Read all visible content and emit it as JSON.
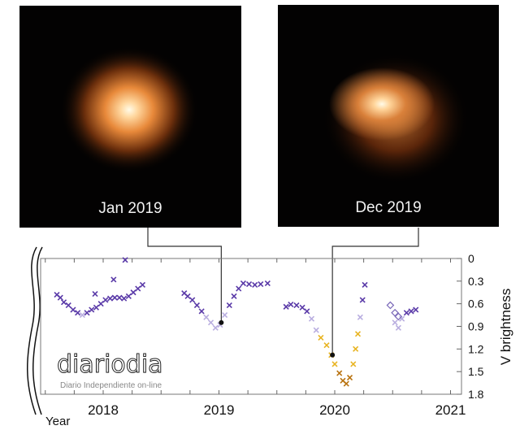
{
  "images": [
    {
      "caption": "Jan 2019"
    },
    {
      "caption": "Dec 2019"
    }
  ],
  "chart_data": {
    "type": "scatter",
    "xlabel": "Year",
    "ylabel": "V brightness",
    "xlim": [
      2017.45,
      2021.1
    ],
    "ylim": [
      0,
      1.8
    ],
    "y_inverted": true,
    "x_ticks": [
      "2018",
      "2019",
      "2020",
      "2021"
    ],
    "x_tick_values": [
      2018,
      2019,
      2020,
      2021
    ],
    "y_ticks": [
      "0",
      "0.3",
      "0.6",
      "0.9",
      "1.2",
      "1.5",
      "1.8"
    ],
    "y_tick_values": [
      0,
      0.3,
      0.6,
      0.9,
      1.2,
      1.5,
      1.8
    ],
    "grid": false,
    "colors": {
      "bright": "#5a3aa8",
      "faint": "#b9aee0",
      "dim": "#e8b422",
      "dimmest": "#b8720f",
      "marker": "#111111"
    },
    "series": [
      {
        "marker": "x",
        "points": [
          [
            2017.6,
            0.48
          ],
          [
            2017.63,
            0.52
          ],
          [
            2017.66,
            0.58
          ],
          [
            2017.7,
            0.62
          ],
          [
            2017.74,
            0.68
          ],
          [
            2017.78,
            0.72
          ],
          [
            2017.82,
            0.75
          ],
          [
            2017.86,
            0.72
          ],
          [
            2017.9,
            0.68
          ],
          [
            2017.94,
            0.65
          ],
          [
            2017.98,
            0.6
          ],
          [
            2018.02,
            0.55
          ],
          [
            2018.06,
            0.53
          ],
          [
            2018.1,
            0.52
          ],
          [
            2018.14,
            0.52
          ],
          [
            2018.18,
            0.53
          ],
          [
            2018.22,
            0.5
          ],
          [
            2018.26,
            0.45
          ],
          [
            2018.3,
            0.4
          ],
          [
            2018.34,
            0.35
          ],
          [
            2017.93,
            0.47
          ],
          [
            2018.09,
            0.28
          ],
          [
            2018.19,
            0.02
          ],
          [
            2018.7,
            0.46
          ],
          [
            2018.73,
            0.5
          ],
          [
            2018.77,
            0.55
          ],
          [
            2018.81,
            0.62
          ],
          [
            2018.85,
            0.7
          ],
          [
            2018.89,
            0.78
          ],
          [
            2018.93,
            0.85
          ],
          [
            2018.97,
            0.92
          ],
          [
            2019.01,
            0.88
          ],
          [
            2019.05,
            0.75
          ],
          [
            2019.09,
            0.62
          ],
          [
            2019.13,
            0.5
          ],
          [
            2019.17,
            0.4
          ],
          [
            2019.21,
            0.33
          ],
          [
            2019.26,
            0.34
          ],
          [
            2019.31,
            0.35
          ],
          [
            2019.36,
            0.34
          ],
          [
            2019.42,
            0.33
          ],
          [
            2019.58,
            0.64
          ],
          [
            2019.62,
            0.61
          ],
          [
            2019.67,
            0.62
          ],
          [
            2019.72,
            0.65
          ],
          [
            2019.76,
            0.7
          ],
          [
            2019.8,
            0.8
          ],
          [
            2019.84,
            0.95
          ],
          [
            2019.88,
            1.05
          ],
          [
            2019.93,
            1.15
          ],
          [
            2019.97,
            1.28
          ],
          [
            2020.0,
            1.4
          ],
          [
            2020.04,
            1.52
          ],
          [
            2020.07,
            1.62
          ],
          [
            2020.1,
            1.66
          ],
          [
            2020.13,
            1.58
          ],
          [
            2020.16,
            1.4
          ],
          [
            2020.18,
            1.2
          ],
          [
            2020.2,
            1.0
          ],
          [
            2020.22,
            0.78
          ],
          [
            2020.24,
            0.55
          ],
          [
            2020.26,
            0.35
          ],
          [
            2020.52,
            0.85
          ],
          [
            2020.55,
            0.92
          ],
          [
            2020.58,
            0.8
          ],
          [
            2020.62,
            0.72
          ],
          [
            2020.66,
            0.7
          ],
          [
            2020.7,
            0.68
          ]
        ]
      },
      {
        "marker": "diamond",
        "points": [
          [
            2020.48,
            0.62
          ],
          [
            2020.52,
            0.72
          ],
          [
            2020.55,
            0.77
          ]
        ]
      }
    ],
    "annotations": [
      {
        "label": "Jan 2019",
        "x": 2019.02,
        "y": 0.85
      },
      {
        "label": "Dec 2019",
        "x": 2019.98,
        "y": 1.28
      }
    ]
  },
  "watermark": {
    "logo": "diariodia",
    "tagline": "Diario Independiente on-line"
  }
}
